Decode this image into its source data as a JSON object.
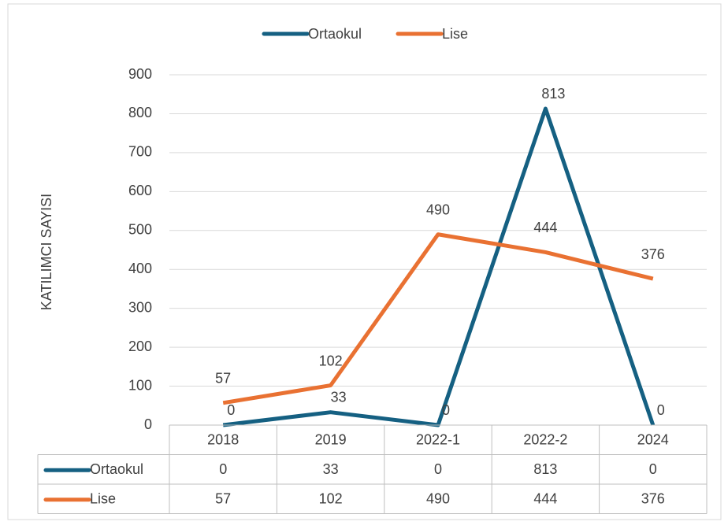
{
  "chart_data": {
    "type": "line",
    "y_label": "KATILIMCI SAYISI",
    "categories": [
      "2018",
      "2019",
      "2022-1",
      "2022-2",
      "2024"
    ],
    "series": [
      {
        "name": "Ortaokul",
        "color": "#156082",
        "values": [
          0,
          33,
          0,
          813,
          0
        ]
      },
      {
        "name": "Lise",
        "color": "#e97132",
        "values": [
          57,
          102,
          490,
          444,
          376
        ]
      }
    ],
    "ylim": [
      0,
      900
    ],
    "yticks": [
      0,
      100,
      200,
      300,
      400,
      500,
      600,
      700,
      800,
      900
    ],
    "grid": true,
    "legend": "top",
    "data_table": true
  }
}
